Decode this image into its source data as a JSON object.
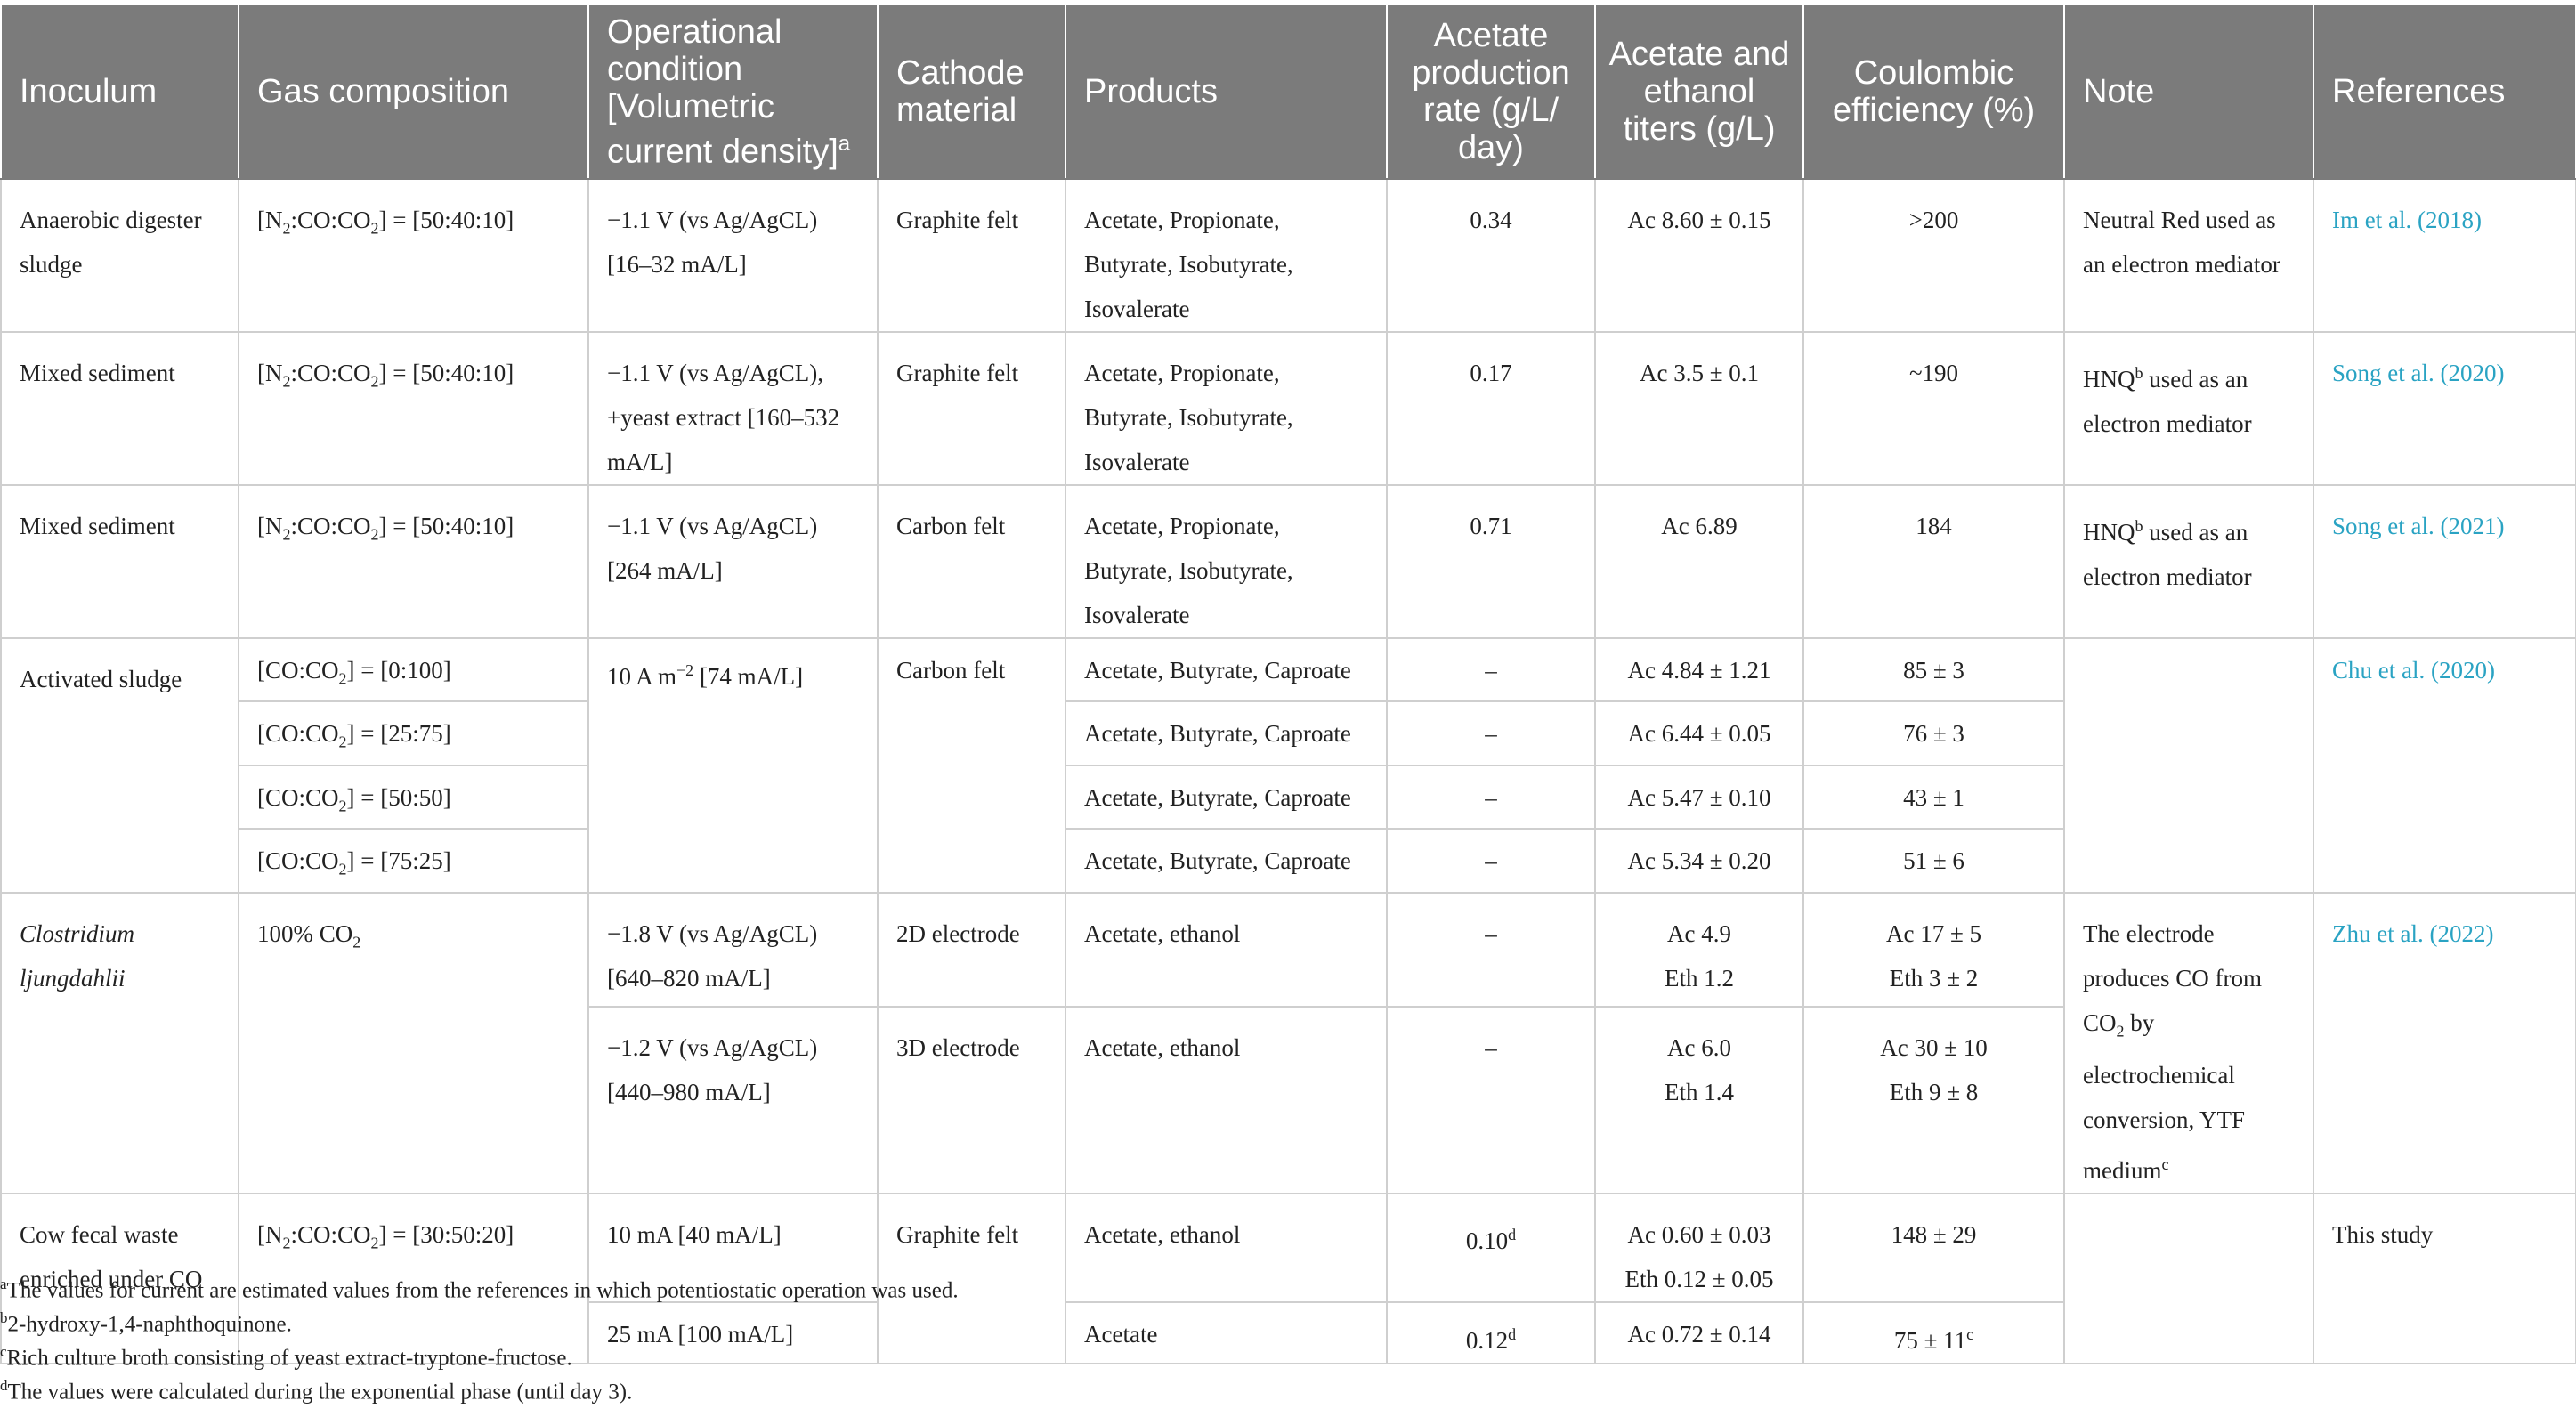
{
  "headers": {
    "inoculum": "Inoculum",
    "gas": "Gas composition",
    "operational": "Operational condition [Volumetric current density]",
    "operational_sup": "a",
    "cathode": "Cathode material",
    "products": "Products",
    "rate": "Acetate production rate (g/L/ day)",
    "titers": "Acetate and ethanol titers (g/L)",
    "ce": "Coulombic efficiency (%)",
    "note": "Note",
    "refs": "References"
  },
  "rows": {
    "im": {
      "inoculum": "Anaerobic digester sludge",
      "gas_pre": "[N",
      "gas_s1": "2",
      "gas_mid": ":CO:CO",
      "gas_s2": "2",
      "gas_post": "] = [50:40:10]",
      "operational": "−1.1 V (vs Ag/AgCL) [16–32 mA/L]",
      "cathode": "Graphite felt",
      "products": "Acetate, Propionate, Butyrate, Isobutyrate, Isovalerate",
      "rate": "0.34",
      "titers": "Ac 8.60 ± 0.15",
      "ce": ">200",
      "note": "Neutral Red used as an electron mediator",
      "ref": "Im et al. (2018)"
    },
    "song2020": {
      "inoculum": "Mixed sediment",
      "gas_pre": "[N",
      "gas_s1": "2",
      "gas_mid": ":CO:CO",
      "gas_s2": "2",
      "gas_post": "] = [50:40:10]",
      "operational": "−1.1 V (vs Ag/AgCL), +yeast extract [160–532 mA/L]",
      "cathode": "Graphite felt",
      "products": "Acetate, Propionate, Butyrate, Isobutyrate, Isovalerate",
      "rate": "0.17",
      "titers": "Ac 3.5 ± 0.1",
      "ce": "~190",
      "note_pre": "HNQ",
      "note_sup": "b",
      "note_post": " used as an electron mediator",
      "ref": "Song et al. (2020)"
    },
    "song2021": {
      "inoculum": "Mixed sediment",
      "gas_pre": "[N",
      "gas_s1": "2",
      "gas_mid": ":CO:CO",
      "gas_s2": "2",
      "gas_post": "] = [50:40:10]",
      "operational": "−1.1 V (vs Ag/AgCL) [264 mA/L]",
      "cathode": "Carbon felt",
      "products": "Acetate, Propionate, Butyrate, Isobutyrate, Isovalerate",
      "rate": "0.71",
      "titers": "Ac 6.89",
      "ce": "184",
      "note_pre": "HNQ",
      "note_sup": "b",
      "note_post": " used as an electron mediator",
      "ref": "Song et al. (2021)"
    },
    "chu": {
      "inoculum": "Activated sludge",
      "operational_pre": "10 A m",
      "operational_sup": "−2",
      "operational_post": " [74 mA/L]",
      "cathode": "Carbon felt",
      "ref": "Chu et al. (2020)",
      "sub": [
        {
          "gas_pre": "[CO:CO",
          "gas_s": "2",
          "gas_post": "] = [0:100]",
          "products": "Acetate, Butyrate, Caproate",
          "rate": "–",
          "titers": "Ac 4.84 ± 1.21",
          "ce": "85 ± 3"
        },
        {
          "gas_pre": "[CO:CO",
          "gas_s": "2",
          "gas_post": "] = [25:75]",
          "products": "Acetate, Butyrate, Caproate",
          "rate": "–",
          "titers": "Ac 6.44 ± 0.05",
          "ce": "76 ± 3"
        },
        {
          "gas_pre": "[CO:CO",
          "gas_s": "2",
          "gas_post": "] = [50:50]",
          "products": "Acetate, Butyrate, Caproate",
          "rate": "–",
          "titers": "Ac 5.47 ± 0.10",
          "ce": "43 ± 1"
        },
        {
          "gas_pre": "[CO:CO",
          "gas_s": "2",
          "gas_post": "] = [75:25]",
          "products": "Acetate, Butyrate, Caproate",
          "rate": "–",
          "titers": "Ac 5.34 ± 0.20",
          "ce": "51 ± 6"
        }
      ]
    },
    "zhu": {
      "inoculum": "Clostridium ljungdahlii",
      "gas_pre": "100% CO",
      "gas_s": "2",
      "note_pre": "The electrode produces CO from CO",
      "note_s": "2",
      "note_mid": " by electrochemical conversion, YTF medium",
      "note_sup": "c",
      "ref": "Zhu et al. (2022)",
      "sub": [
        {
          "operational": "−1.8 V (vs Ag/AgCL) [640–820 mA/L]",
          "cathode": "2D electrode",
          "products": "Acetate, ethanol",
          "rate": "–",
          "titers_1": "Ac 4.9",
          "titers_2": "Eth 1.2",
          "ce_1": "Ac 17 ± 5",
          "ce_2": "Eth 3 ± 2"
        },
        {
          "operational": "−1.2 V (vs Ag/AgCL) [440–980 mA/L]",
          "cathode": "3D electrode",
          "products": "Acetate, ethanol",
          "rate": "–",
          "titers_1": "Ac 6.0",
          "titers_2": "Eth 1.4",
          "ce_1": "Ac 30 ± 10",
          "ce_2": "Eth 9 ± 8"
        }
      ]
    },
    "study": {
      "inoculum": "Cow fecal waste enriched under CO",
      "gas_pre": "[N",
      "gas_s1": "2",
      "gas_mid": ":CO:CO",
      "gas_s2": "2",
      "gas_post": "] = [30:50:20]",
      "cathode": "Graphite felt",
      "ref": "This study",
      "sub": [
        {
          "operational": "10 mA [40 mA/L]",
          "products": "Acetate, ethanol",
          "rate": "0.10",
          "rate_sup": "d",
          "titers_1": "Ac 0.60 ± 0.03",
          "titers_2": "Eth 0.12 ± 0.05",
          "ce": "148 ± 29"
        },
        {
          "operational": "25 mA [100 mA/L]",
          "products": "Acetate",
          "rate": "0.12",
          "rate_sup": "d",
          "titers_1": "Ac 0.72 ± 0.14",
          "ce": "75 ± 11",
          "ce_sup": "c"
        }
      ]
    }
  },
  "footnotes": [
    {
      "mark": "a",
      "text": "The values for current are estimated values from the references in which potentiostatic operation was used."
    },
    {
      "mark": "b",
      "text": "2-hydroxy-1,4-naphthoquinone."
    },
    {
      "mark": "c",
      "text": "Rich culture broth consisting of yeast extract-tryptone-fructose."
    },
    {
      "mark": "d",
      "text": "The values were calculated during the exponential phase (until day 3)."
    }
  ]
}
